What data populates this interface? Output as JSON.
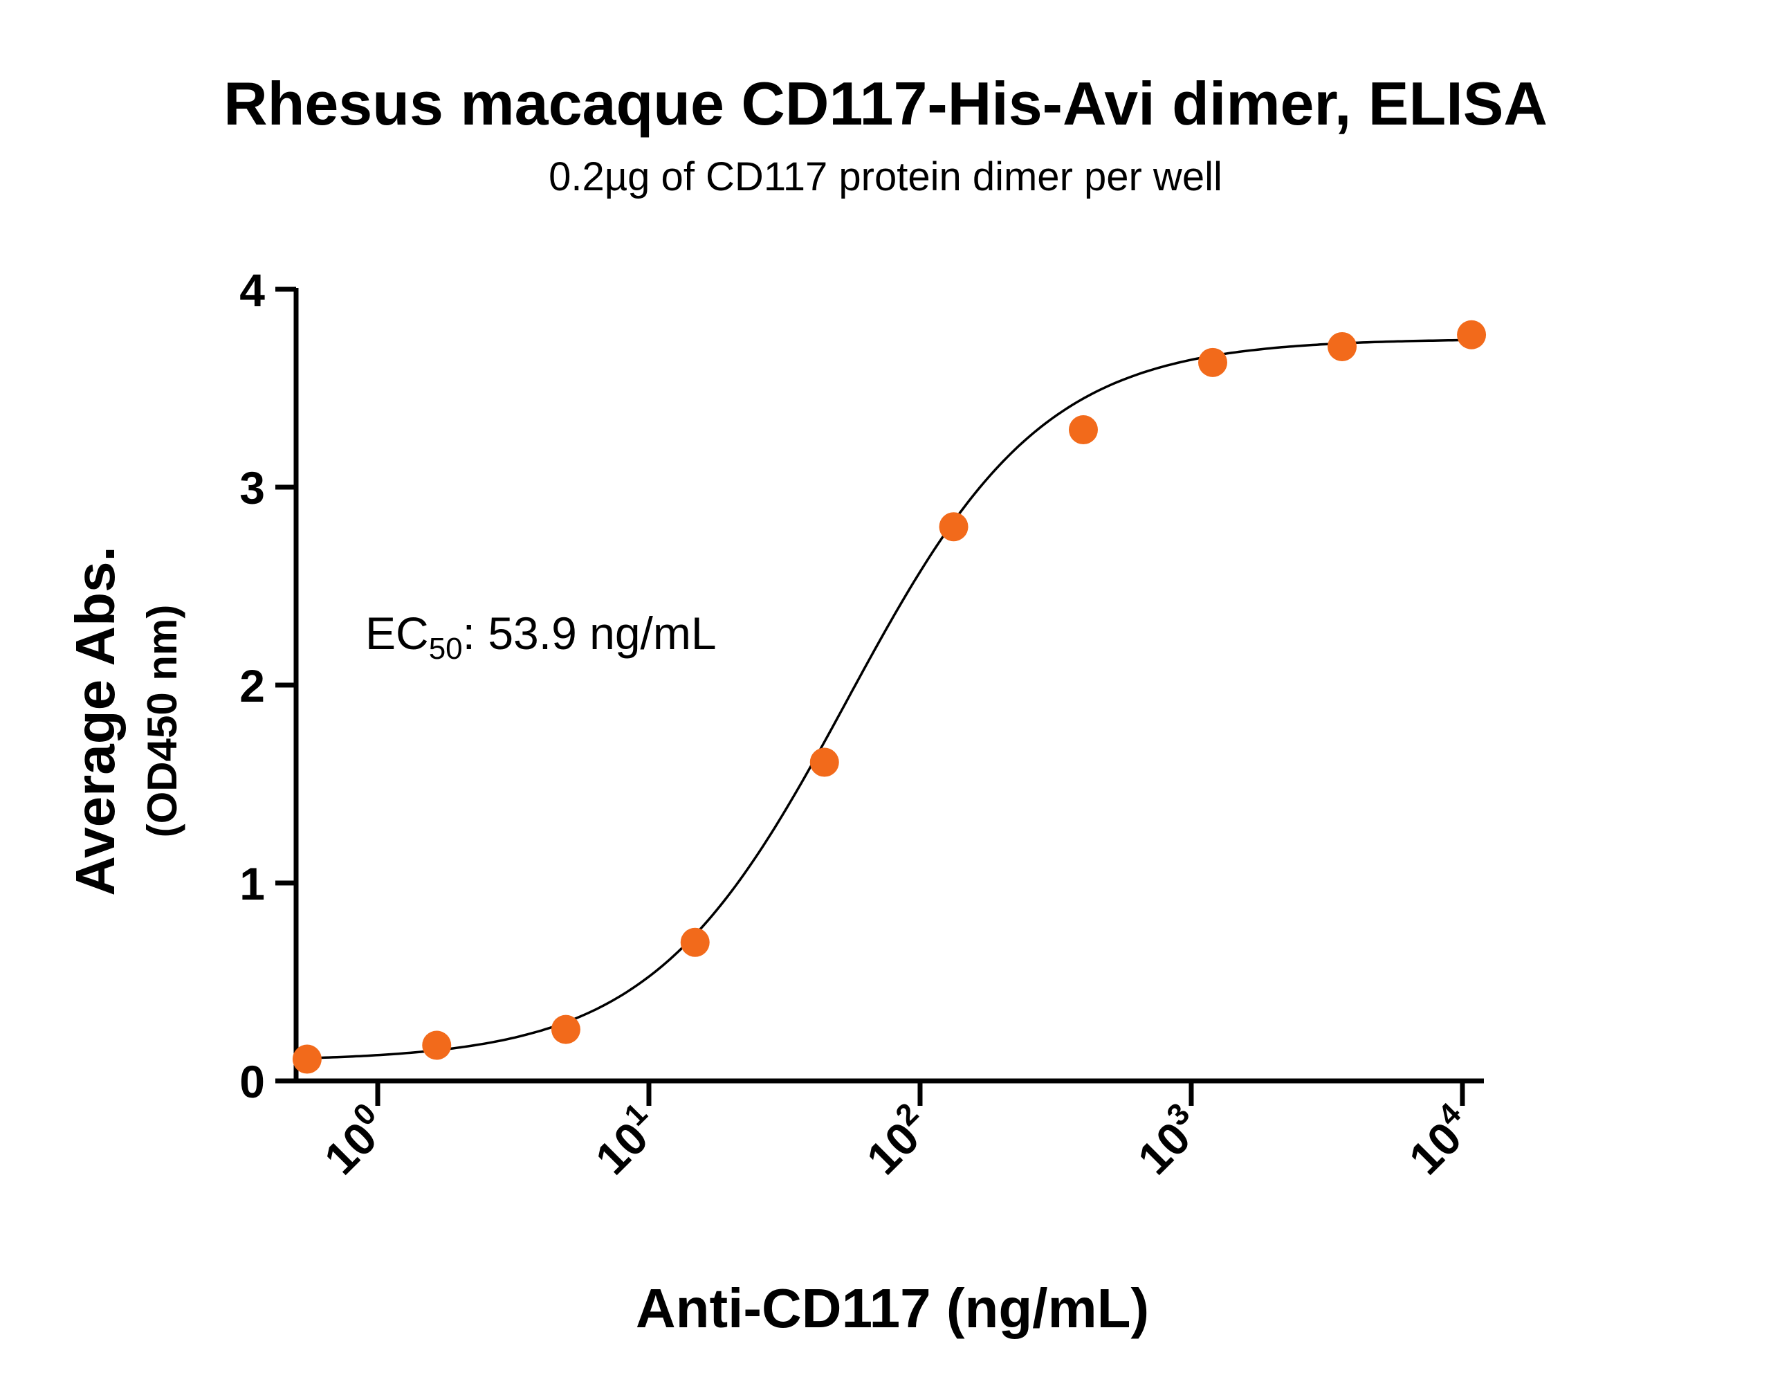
{
  "chart_data": {
    "type": "scatter",
    "title": "Rhesus macaque CD117-His-Avi dimer, ELISA",
    "subtitle": "0.2µg of CD117 protein dimer per well",
    "xlabel": "Anti-CD117  (ng/mL)",
    "ylabel": "Average Abs.",
    "ylabel_sub": "(OD450 nm)",
    "x_scale": "log10",
    "xlim": [
      0.5,
      12000
    ],
    "ylim": [
      0,
      4
    ],
    "x_ticks": [
      {
        "value": 1,
        "base": "10",
        "exp": "0"
      },
      {
        "value": 10,
        "base": "10",
        "exp": "1"
      },
      {
        "value": 100,
        "base": "10",
        "exp": "2"
      },
      {
        "value": 1000,
        "base": "10",
        "exp": "3"
      },
      {
        "value": 10000,
        "base": "10",
        "exp": "4"
      }
    ],
    "y_ticks": [
      0,
      1,
      2,
      3,
      4
    ],
    "grid": false,
    "point_color": "#f26a1b",
    "series": [
      {
        "x": [
          0.549,
          1.65,
          4.94,
          14.8,
          44.4,
          133,
          400,
          1200,
          3600,
          10800
        ],
        "y": [
          0.11,
          0.18,
          0.26,
          0.7,
          1.61,
          2.8,
          3.29,
          3.63,
          3.71,
          3.77
        ]
      }
    ],
    "fit": {
      "model": "4PL",
      "bottom": 0.1,
      "top": 3.75,
      "ec50": 53.9,
      "hill": 1.2
    },
    "annotation": {
      "prefix": "EC",
      "subscript": "50",
      "suffix": ": 53.9 ng/mL"
    }
  }
}
